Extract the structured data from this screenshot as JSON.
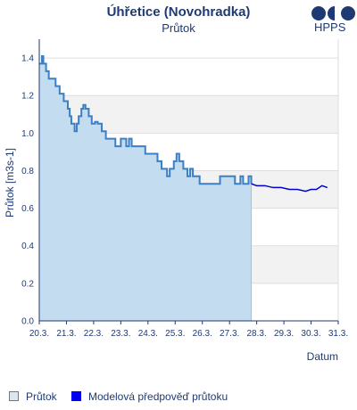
{
  "header": {
    "title": "Úhřetice (Novohradka)",
    "subtitle": "Průtok",
    "logo_text": "HPPS"
  },
  "legend": {
    "items": [
      {
        "label": "Průtok",
        "color": "#dbe6ef",
        "border": "#777777"
      },
      {
        "label": "Modelová předpověď průtoku",
        "color": "#0000ee",
        "border": "#0000ee"
      }
    ]
  },
  "colors": {
    "measured_line": "#3d7fc4",
    "measured_fill": "#c3dcf0",
    "forecast_line": "#0000cc",
    "band": "#f2f2f2",
    "axis_text": "#1f3a73"
  },
  "chart_data": {
    "type": "area",
    "title": "Úhřetice (Novohradka)",
    "subtitle": "Průtok",
    "xlabel": "Datum",
    "ylabel": "Průtok [m3s-1]",
    "xlim": [
      20,
      31
    ],
    "ylim": [
      0,
      1.5
    ],
    "x_ticks": [
      20,
      21,
      22,
      23,
      24,
      25,
      26,
      27,
      28,
      29,
      30,
      31
    ],
    "x_tick_labels": [
      "20.3.",
      "21.3.",
      "22.3.",
      "23.3.",
      "24.3.",
      "25.3.",
      "26.3.",
      "27.3.",
      "28.3.",
      "29.3.",
      "30.3.",
      "31.3."
    ],
    "y_ticks": [
      0.0,
      0.2,
      0.4,
      0.6,
      0.8,
      1.0,
      1.2,
      1.4
    ],
    "y_tick_labels": [
      "0.0",
      "0.2",
      "0.4",
      "0.6",
      "0.8",
      "1.0",
      "1.2",
      "1.4"
    ],
    "grid": true,
    "legend_position": "bottom",
    "series": [
      {
        "name": "Průtok",
        "style": "step-area",
        "x": [
          20.0,
          20.1,
          20.15,
          20.25,
          20.35,
          20.6,
          20.75,
          20.9,
          21.05,
          21.12,
          21.18,
          21.3,
          21.38,
          21.45,
          21.55,
          21.62,
          21.7,
          21.82,
          21.93,
          22.05,
          22.15,
          22.3,
          22.45,
          22.6,
          22.8,
          23.0,
          23.2,
          23.3,
          23.4,
          23.6,
          23.75,
          23.9,
          24.1,
          24.35,
          24.5,
          24.7,
          24.8,
          24.95,
          25.05,
          25.15,
          25.3,
          25.45,
          25.55,
          25.65,
          25.8,
          25.9,
          26.0,
          26.15,
          26.5,
          26.65,
          27.0,
          27.2,
          27.4,
          27.5,
          27.7,
          27.8
        ],
        "y": [
          1.37,
          1.41,
          1.37,
          1.33,
          1.29,
          1.25,
          1.21,
          1.17,
          1.13,
          1.09,
          1.05,
          1.01,
          1.05,
          1.09,
          1.13,
          1.15,
          1.13,
          1.09,
          1.05,
          1.06,
          1.05,
          1.01,
          0.97,
          0.97,
          0.93,
          0.97,
          0.93,
          0.97,
          0.93,
          0.93,
          0.93,
          0.89,
          0.89,
          0.85,
          0.81,
          0.77,
          0.81,
          0.85,
          0.89,
          0.85,
          0.81,
          0.77,
          0.81,
          0.77,
          0.77,
          0.73,
          0.73,
          0.73,
          0.73,
          0.77,
          0.77,
          0.73,
          0.77,
          0.73,
          0.77,
          0.73
        ]
      },
      {
        "name": "Modelová předpověď průtoku",
        "style": "line",
        "x": [
          27.8,
          28.0,
          28.3,
          28.6,
          28.9,
          29.2,
          29.5,
          29.8,
          30.0,
          30.2,
          30.4,
          30.6
        ],
        "y": [
          0.73,
          0.72,
          0.72,
          0.71,
          0.71,
          0.7,
          0.7,
          0.69,
          0.7,
          0.7,
          0.72,
          0.71
        ]
      }
    ]
  }
}
